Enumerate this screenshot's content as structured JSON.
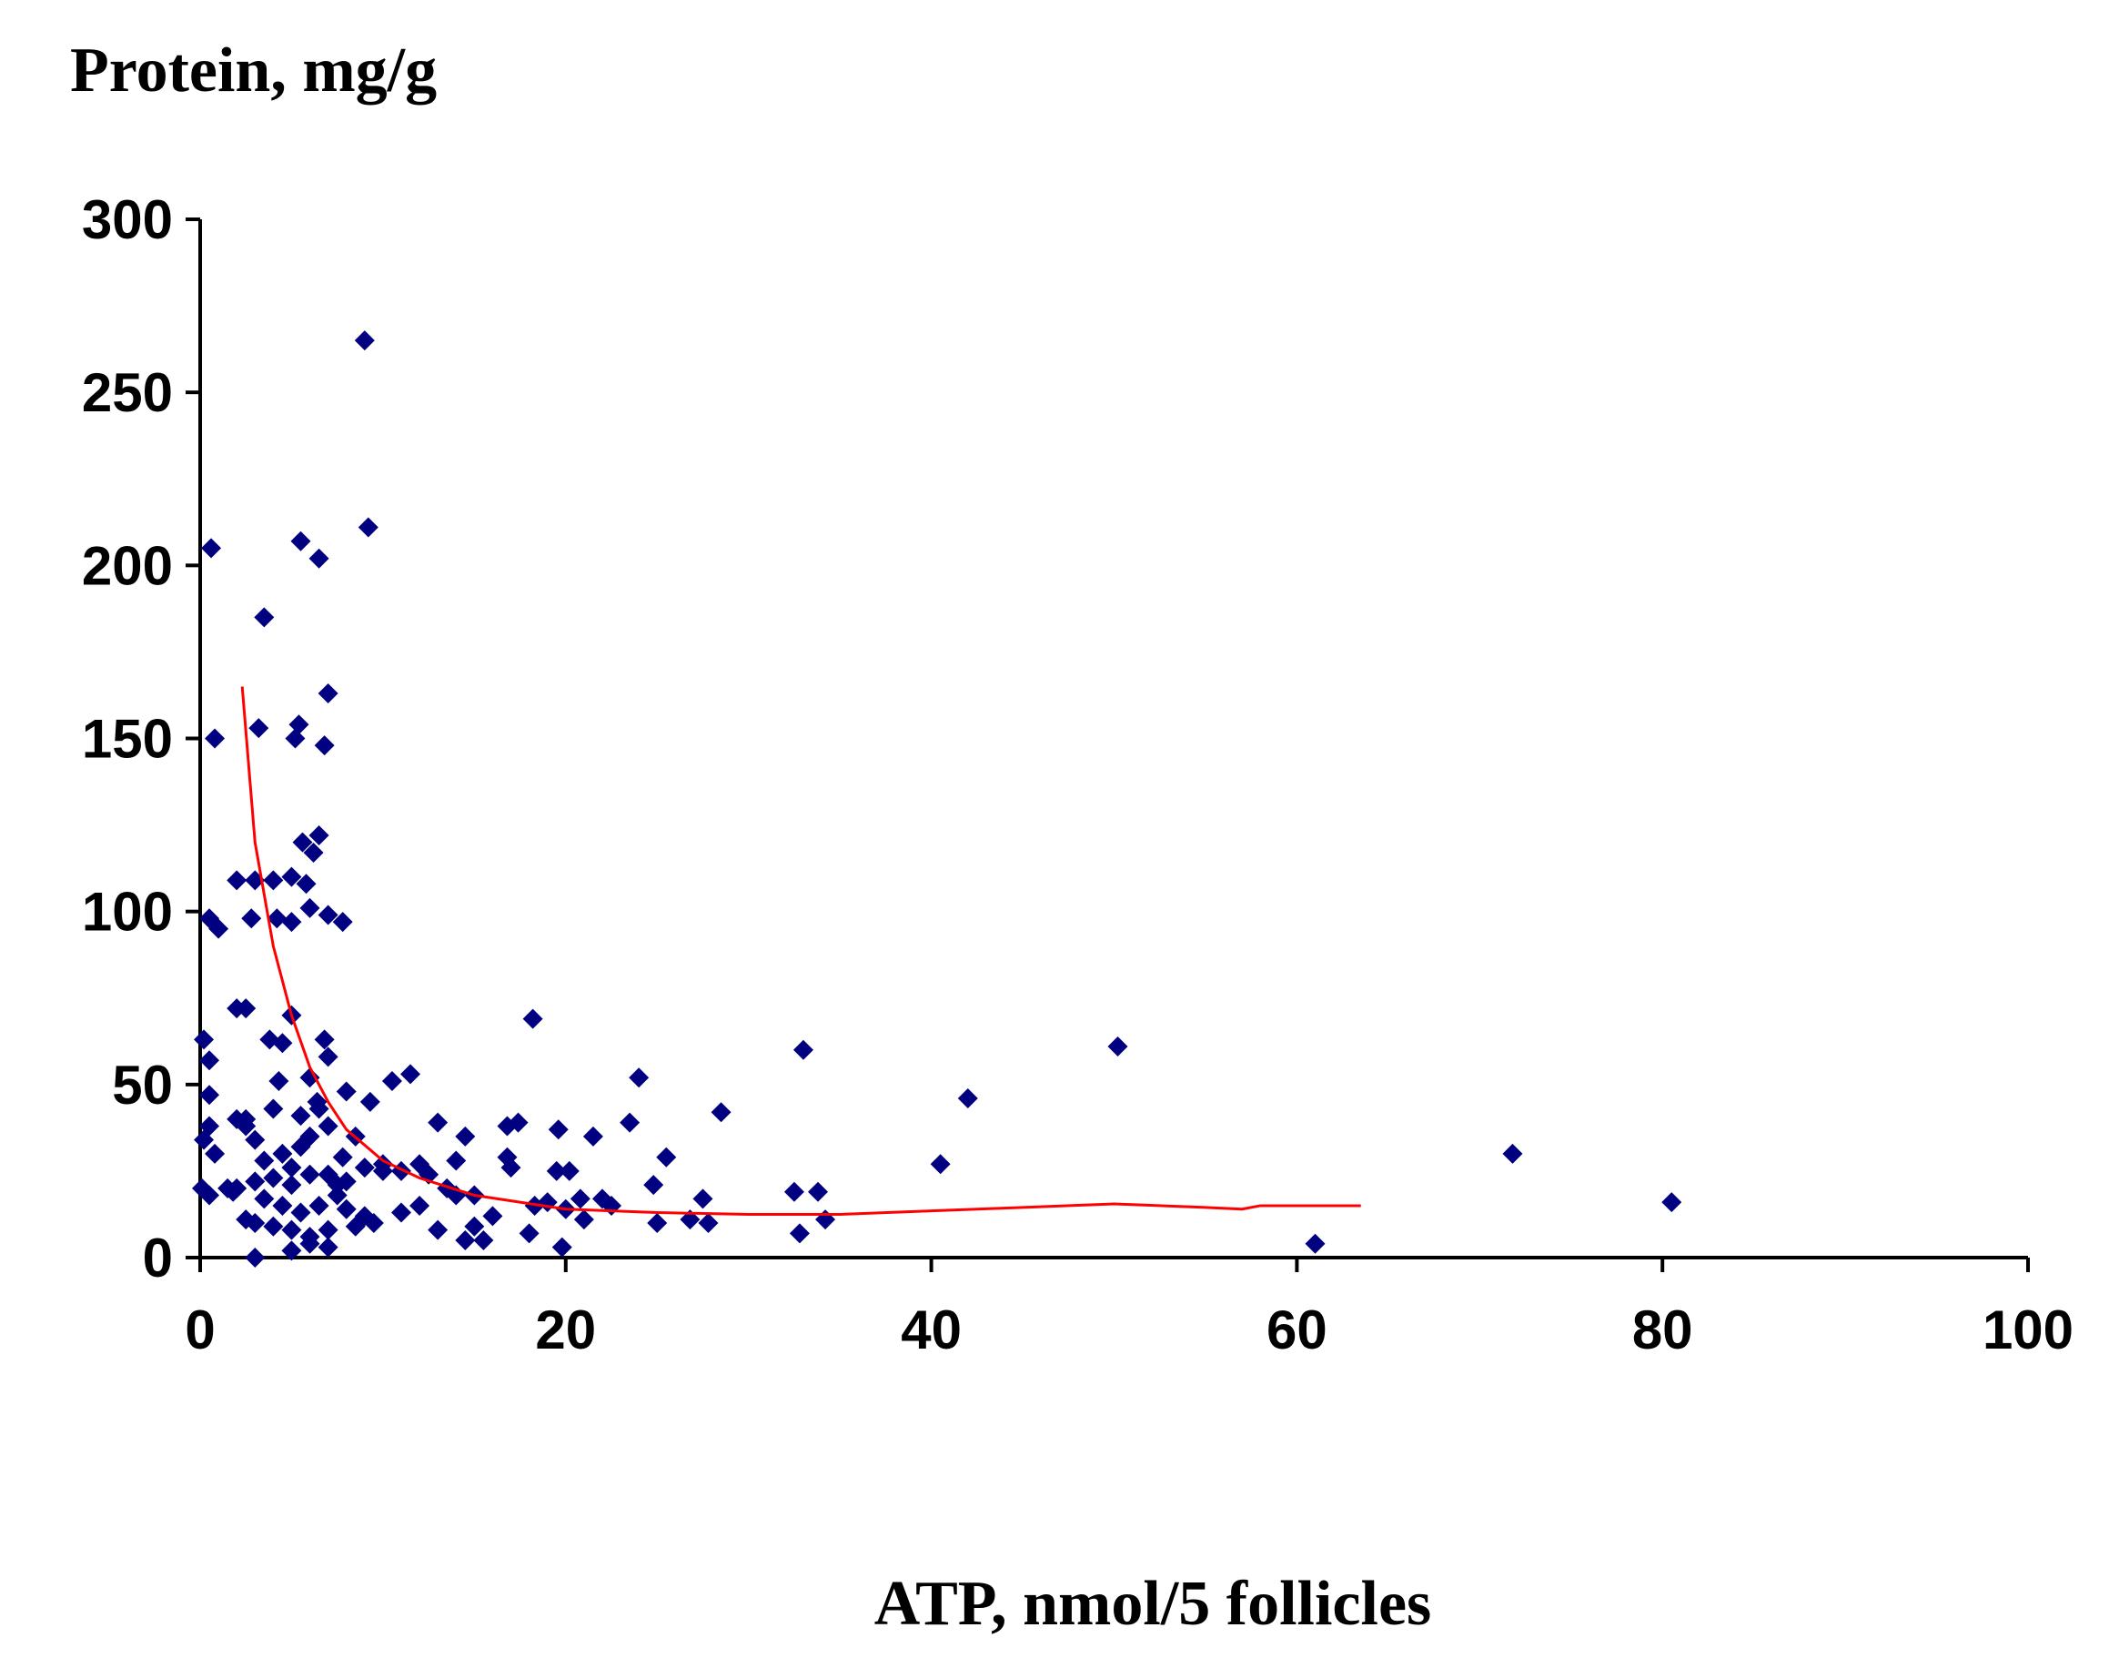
{
  "chart_data": {
    "type": "scatter",
    "y_label": "Protein, mg/g",
    "x_label": "ATP, nmol/5 follicles",
    "xlim": [
      0,
      100
    ],
    "xticks": [
      0,
      20,
      40,
      60,
      80,
      100
    ],
    "ylim": [
      0,
      300
    ],
    "yticks": [
      0,
      50,
      100,
      150,
      200,
      250,
      300
    ],
    "grid": false,
    "series": [
      {
        "color": "#000080",
        "x": [
          0.6,
          9,
          9.2,
          5.5,
          6.5,
          3.5,
          7,
          0.8,
          3.2,
          5.2,
          5.4,
          6.8,
          5.6,
          6.5,
          6.2,
          5,
          5.8,
          2,
          3,
          4,
          6,
          0.5,
          1,
          2.8,
          4.2,
          5,
          7,
          7.8,
          2,
          2.5,
          5,
          3.8,
          4.5,
          6.8,
          0.2,
          0.5,
          7,
          18.2,
          33,
          50.2,
          24,
          11.5,
          10.5,
          4.3,
          6,
          0.5,
          8,
          42,
          28.5,
          2,
          2.5,
          13,
          16.8,
          17.4,
          19.6,
          21.5,
          23.5,
          14.5,
          9.3,
          0.5,
          0.2,
          0.8,
          3,
          6.4,
          7,
          5.5,
          4.5,
          25.5,
          40.5,
          71.8,
          16.8,
          17,
          19.5,
          20.2,
          12,
          12.5,
          14,
          13.5,
          11,
          10,
          9,
          8,
          7.5,
          7,
          6,
          5,
          4,
          3,
          2,
          1.5,
          0.1,
          0.5,
          1.8,
          3.5,
          4.5,
          5.5,
          6.5,
          7.5,
          8,
          9,
          9.5,
          8.5,
          7,
          6,
          5,
          4,
          3,
          2.5,
          3,
          5,
          6,
          7,
          11,
          12,
          13,
          14.5,
          15,
          15.5,
          16,
          14,
          15,
          18,
          18.3,
          19,
          20,
          20.8,
          21,
          22,
          22.5,
          24.8,
          25,
          26.8,
          27.5,
          27.8,
          32.5,
          33.8,
          34.2,
          32.8,
          19.8,
          61,
          80.5,
          10,
          7.8,
          8.5,
          4,
          5.5,
          6.5,
          6,
          5,
          3.5,
          2.5
        ],
        "values": [
          205,
          265,
          211,
          207,
          202,
          185,
          163,
          150,
          153,
          150,
          154,
          148,
          120,
          122,
          117,
          110,
          108,
          109,
          109,
          109,
          101,
          98,
          95,
          98,
          98,
          97,
          99,
          97,
          72,
          72,
          70,
          63,
          62,
          63,
          63,
          57,
          58,
          69,
          60,
          61,
          52,
          53,
          51,
          51,
          52,
          47,
          48,
          46,
          42,
          40,
          38,
          39,
          38,
          39,
          37,
          35,
          39,
          35,
          45,
          38,
          34,
          30,
          34,
          45,
          38,
          32,
          30,
          29,
          27,
          30,
          29,
          26,
          25,
          25,
          27,
          24,
          28,
          20,
          25,
          27,
          26,
          22,
          21,
          24,
          24,
          21,
          23,
          22,
          20,
          20,
          20,
          18,
          19,
          17,
          15,
          13,
          15,
          18,
          14,
          12,
          10,
          9,
          8,
          6,
          8,
          9,
          10,
          11,
          0,
          2,
          4,
          3,
          13,
          15,
          8,
          5,
          9,
          5,
          12,
          18,
          18,
          7,
          15,
          16,
          14,
          17,
          11,
          17,
          15,
          21,
          10,
          11,
          17,
          10,
          19,
          19,
          11,
          7,
          3,
          4,
          16,
          25,
          29,
          35,
          43,
          41,
          43,
          35,
          26,
          28,
          40
        ]
      },
      {
        "type": "line",
        "color": "#ff0000",
        "x": [
          2.3,
          3,
          4,
          5,
          6,
          7,
          8,
          10,
          12,
          15,
          20,
          25,
          30,
          35,
          40,
          45,
          50,
          55,
          57,
          58,
          63.5
        ],
        "values": [
          165,
          120,
          90,
          70,
          55,
          45,
          37,
          28,
          23,
          18,
          14,
          13,
          12.5,
          12.5,
          13.5,
          14.5,
          15.5,
          14.5,
          14,
          15,
          15
        ]
      }
    ]
  }
}
